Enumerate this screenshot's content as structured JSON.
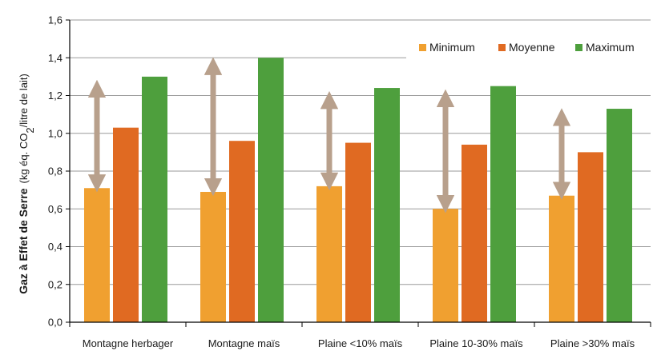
{
  "chart_data": {
    "type": "bar",
    "title": "",
    "xlabel": "",
    "ylabel": {
      "bold": "Gaz à Effet de Serre",
      "prefix": "(kg éq. CO",
      "sub": "2",
      "suffix": "/litre de lait)"
    },
    "ylim": [
      0,
      1.6
    ],
    "yticks": [
      "0,0",
      "0,2",
      "0,4",
      "0,6",
      "0,8",
      "1,0",
      "1,2",
      "1,4",
      "1,6"
    ],
    "grid": true,
    "legend_position": "top-right",
    "categories": [
      "Montagne herbager",
      "Montagne maïs",
      "Plaine <10% maïs",
      "Plaine 10-30% maïs",
      "Plaine >30% maïs"
    ],
    "series": [
      {
        "name": "Minimum",
        "color": "#F0A030",
        "values": [
          0.71,
          0.69,
          0.72,
          0.6,
          0.67
        ]
      },
      {
        "name": "Moyenne",
        "color": "#E06A22",
        "values": [
          1.03,
          0.96,
          0.95,
          0.94,
          0.9
        ]
      },
      {
        "name": "Maximum",
        "color": "#4E9F3D",
        "values": [
          1.3,
          1.4,
          1.24,
          1.25,
          1.13
        ]
      }
    ],
    "arrows": {
      "color": "#B8A08C",
      "ranges": [
        [
          0.71,
          1.27
        ],
        [
          0.69,
          1.39
        ],
        [
          0.72,
          1.21
        ],
        [
          0.6,
          1.22
        ],
        [
          0.67,
          1.12
        ]
      ]
    }
  }
}
